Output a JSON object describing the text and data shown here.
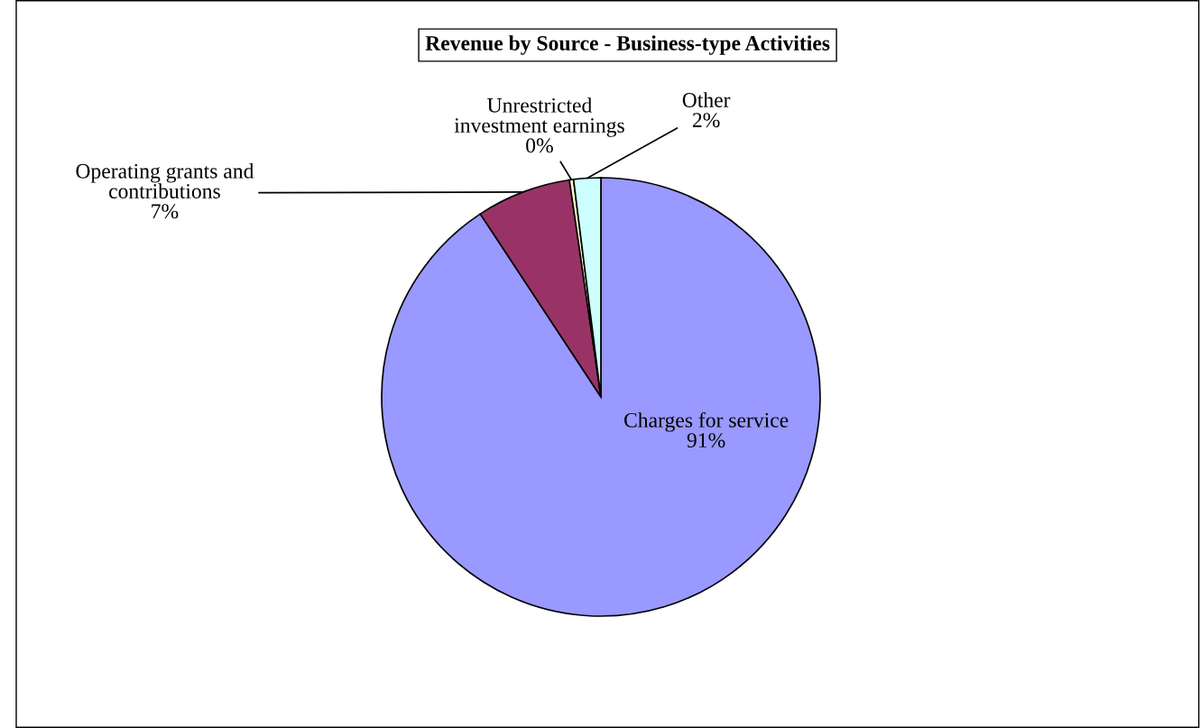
{
  "chart_data": {
    "type": "pie",
    "title": "Revenue by Source - Business-type Activities",
    "categories": [
      "Charges for service",
      "Operating grants and\ncontributions",
      "Unrestricted\ninvestment earnings",
      "Other"
    ],
    "values": [
      91,
      7,
      0.3,
      2
    ],
    "value_labels": [
      "91%",
      "7%",
      "0%",
      "2%"
    ],
    "colors": [
      "#9999ff",
      "#993366",
      "#ffffcc",
      "#ccffff"
    ],
    "legend": false
  }
}
